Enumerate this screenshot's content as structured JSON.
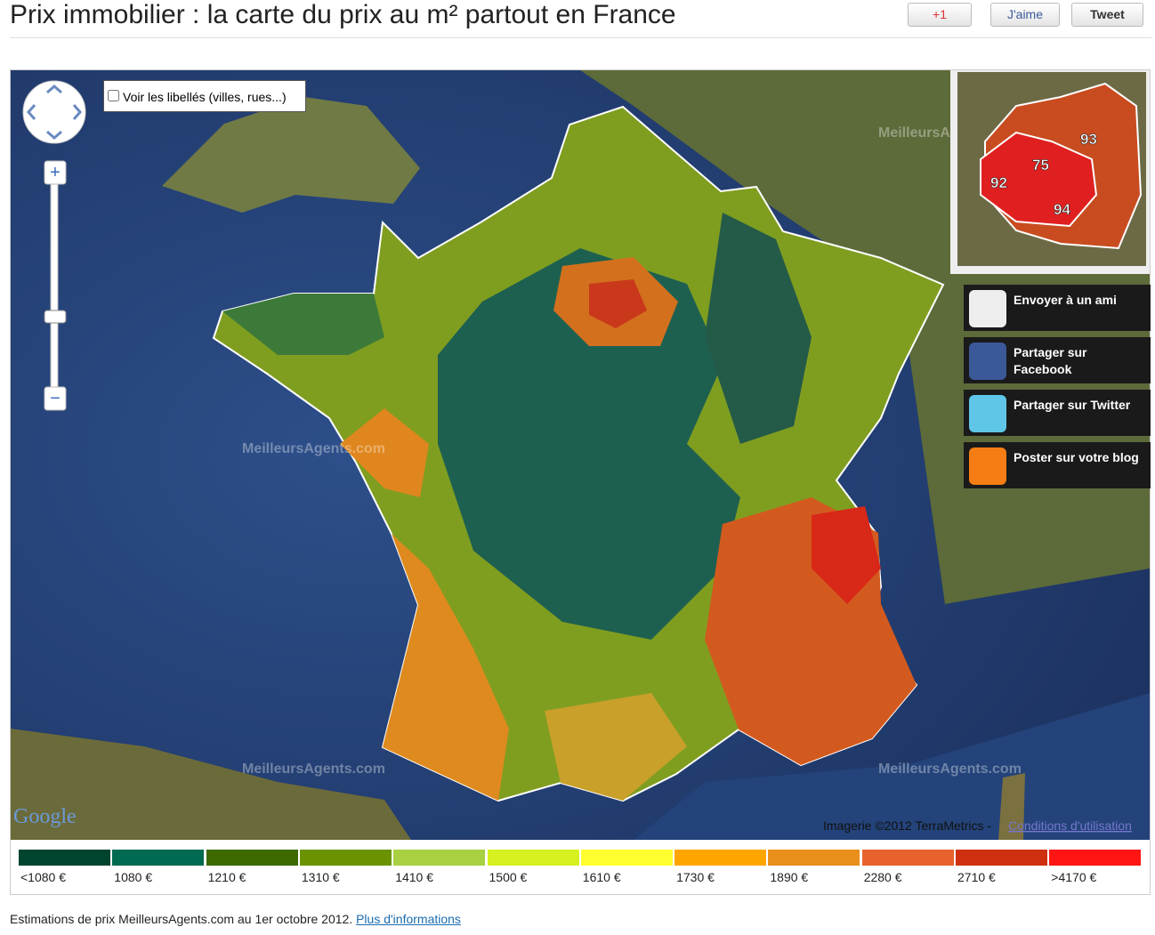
{
  "header": {
    "title": "Prix immobilier : la carte du prix au m² partout en France",
    "buttons": [
      "+1",
      "J'aime",
      "Tweet"
    ]
  },
  "map": {
    "checkbox_label": "Voir les libellés (villes, rues...)",
    "watermark": "MeilleursAgents.com",
    "google": "Google",
    "attribution": "Imagerie ©2012 TerraMetrics -",
    "terms": "Conditions d'utilisation",
    "inset_labels": [
      "93",
      "75",
      "92",
      "94"
    ],
    "share": [
      "Envoyer à un ami",
      "Partager sur Facebook",
      "Partager sur Twitter",
      "Poster sur votre blog"
    ]
  },
  "legend": {
    "labels": [
      "<1080 €",
      "1080 €",
      "1210 €",
      "1310 €",
      "1410 €",
      "1500 €",
      "1610 €",
      "1730 €",
      "1890 €",
      "2280 €",
      "2710 €",
      ">4170 €"
    ],
    "colors": [
      "#00442f",
      "#006b50",
      "#3c6a00",
      "#6b9200",
      "#a8d042",
      "#d6f020",
      "#ffff30",
      "#ffa500",
      "#e88f1c",
      "#e8622e",
      "#cf3010",
      "#ff1414"
    ]
  },
  "footer": {
    "text": "Estimations de prix MeilleursAgents.com au 1er octobre 2012.",
    "link": "Plus d'informations"
  }
}
